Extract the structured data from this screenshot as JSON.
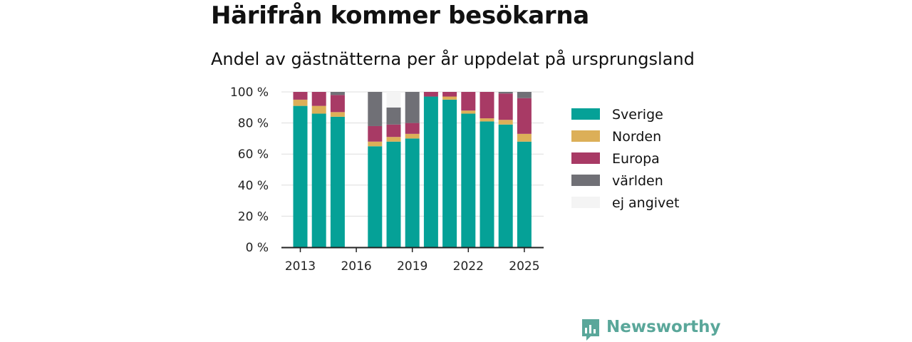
{
  "title": "Härifrån kommer besökarna",
  "subtitle": "Andel av gästnätterna per år uppdelat på ursprungsland",
  "brand": "Newsworthy",
  "chart_data": {
    "type": "bar",
    "stacked": true,
    "x": [
      2013,
      2014,
      2015,
      2016,
      2017,
      2018,
      2019,
      2020,
      2021,
      2022,
      2023,
      2024,
      2025
    ],
    "series": [
      {
        "name": "Sverige",
        "color": "#05a197",
        "values": [
          91,
          86,
          84,
          null,
          65,
          68,
          70,
          97,
          95,
          86,
          81,
          79,
          68
        ]
      },
      {
        "name": "Norden",
        "color": "#dcaf58",
        "values": [
          4,
          5,
          3,
          null,
          3,
          3,
          3,
          0,
          2,
          2,
          2,
          3,
          5
        ]
      },
      {
        "name": "Europa",
        "color": "#a83a65",
        "values": [
          5,
          9,
          11,
          null,
          10,
          8,
          7,
          3,
          3,
          12,
          17,
          17,
          23
        ]
      },
      {
        "name": "världen",
        "color": "#707076",
        "values": [
          0,
          0,
          2,
          null,
          22,
          11,
          20,
          0,
          0,
          0,
          0,
          1,
          4
        ]
      },
      {
        "name": "ej angivet",
        "color": "#f4f4f4",
        "values": [
          0,
          0,
          0,
          null,
          0,
          10,
          0,
          0,
          0,
          0,
          0,
          0,
          0
        ]
      }
    ],
    "x_ticks": [
      "2013",
      "2016",
      "2019",
      "2022",
      "2025"
    ],
    "y_ticks": [
      "0 %",
      "20 %",
      "40 %",
      "60 %",
      "80 %",
      "100 %"
    ],
    "ylim": [
      0,
      100
    ],
    "grid": true,
    "legend": "right"
  }
}
